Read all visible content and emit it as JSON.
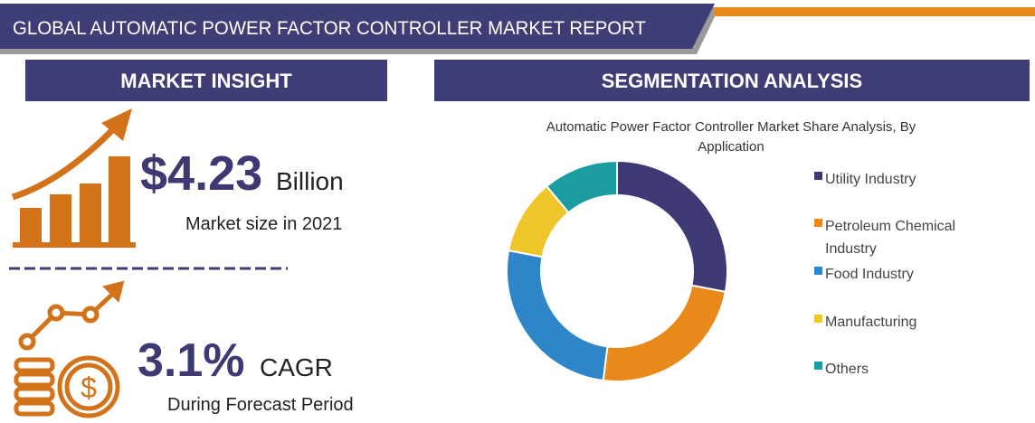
{
  "header": {
    "title": "GLOBAL AUTOMATIC POWER FACTOR CONTROLLER MARKET REPORT"
  },
  "market_insight": {
    "heading": "MARKET INSIGHT",
    "market_size": "$4.23",
    "market_size_unit": "Billion",
    "market_size_caption": "Market size in 2021",
    "cagr": "3.1%",
    "cagr_label": "CAGR",
    "cagr_caption": "During Forecast Period"
  },
  "segmentation": {
    "heading": "SEGMENTATION ANALYSIS"
  },
  "chart_data": {
    "type": "donut",
    "title": "Automatic Power Factor Controller Market Share Analysis, By Application",
    "categories": [
      "Utility Industry",
      "Petroleum Chemical Industry",
      "Food Industry",
      "Manufacturing",
      "Others"
    ],
    "values": [
      28,
      24,
      26,
      11,
      11
    ],
    "colors": [
      "#3d3a73",
      "#e8891a",
      "#2e86c9",
      "#eec62a",
      "#1a9ca0"
    ]
  }
}
